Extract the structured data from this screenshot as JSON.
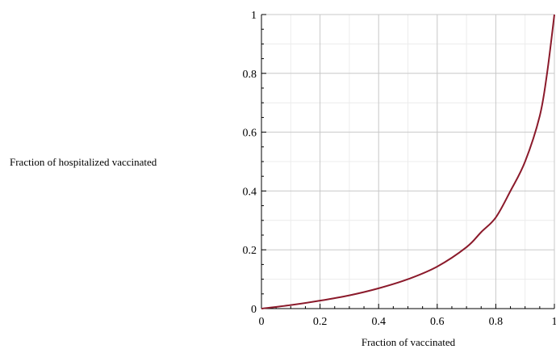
{
  "chart_data": {
    "type": "line",
    "xlabel": "Fraction of vaccinated",
    "ylabel": "Fraction of hospitalized vaccinated",
    "xlim": [
      0,
      1
    ],
    "ylim": [
      0,
      1
    ],
    "grid": true,
    "x_ticks": [
      0,
      0.2,
      0.4,
      0.6,
      0.8,
      1
    ],
    "x_tick_labels": [
      "0",
      "0.2",
      "0.4",
      "0.6",
      "0.8",
      "1"
    ],
    "y_ticks": [
      0,
      0.2,
      0.4,
      0.6,
      0.8,
      1
    ],
    "y_tick_labels": [
      "0",
      "0.2",
      "0.4",
      "0.6",
      "0.8",
      "1"
    ],
    "series": [
      {
        "color": "#8b1a2b",
        "x": [
          0,
          0.1,
          0.2,
          0.3,
          0.4,
          0.5,
          0.6,
          0.7,
          0.75,
          0.8,
          0.85,
          0.9,
          0.95,
          0.975,
          1
        ],
        "y": [
          0,
          0.012,
          0.027,
          0.045,
          0.069,
          0.1,
          0.143,
          0.209,
          0.26,
          0.31,
          0.4,
          0.5,
          0.655,
          0.8,
          1
        ]
      }
    ]
  }
}
